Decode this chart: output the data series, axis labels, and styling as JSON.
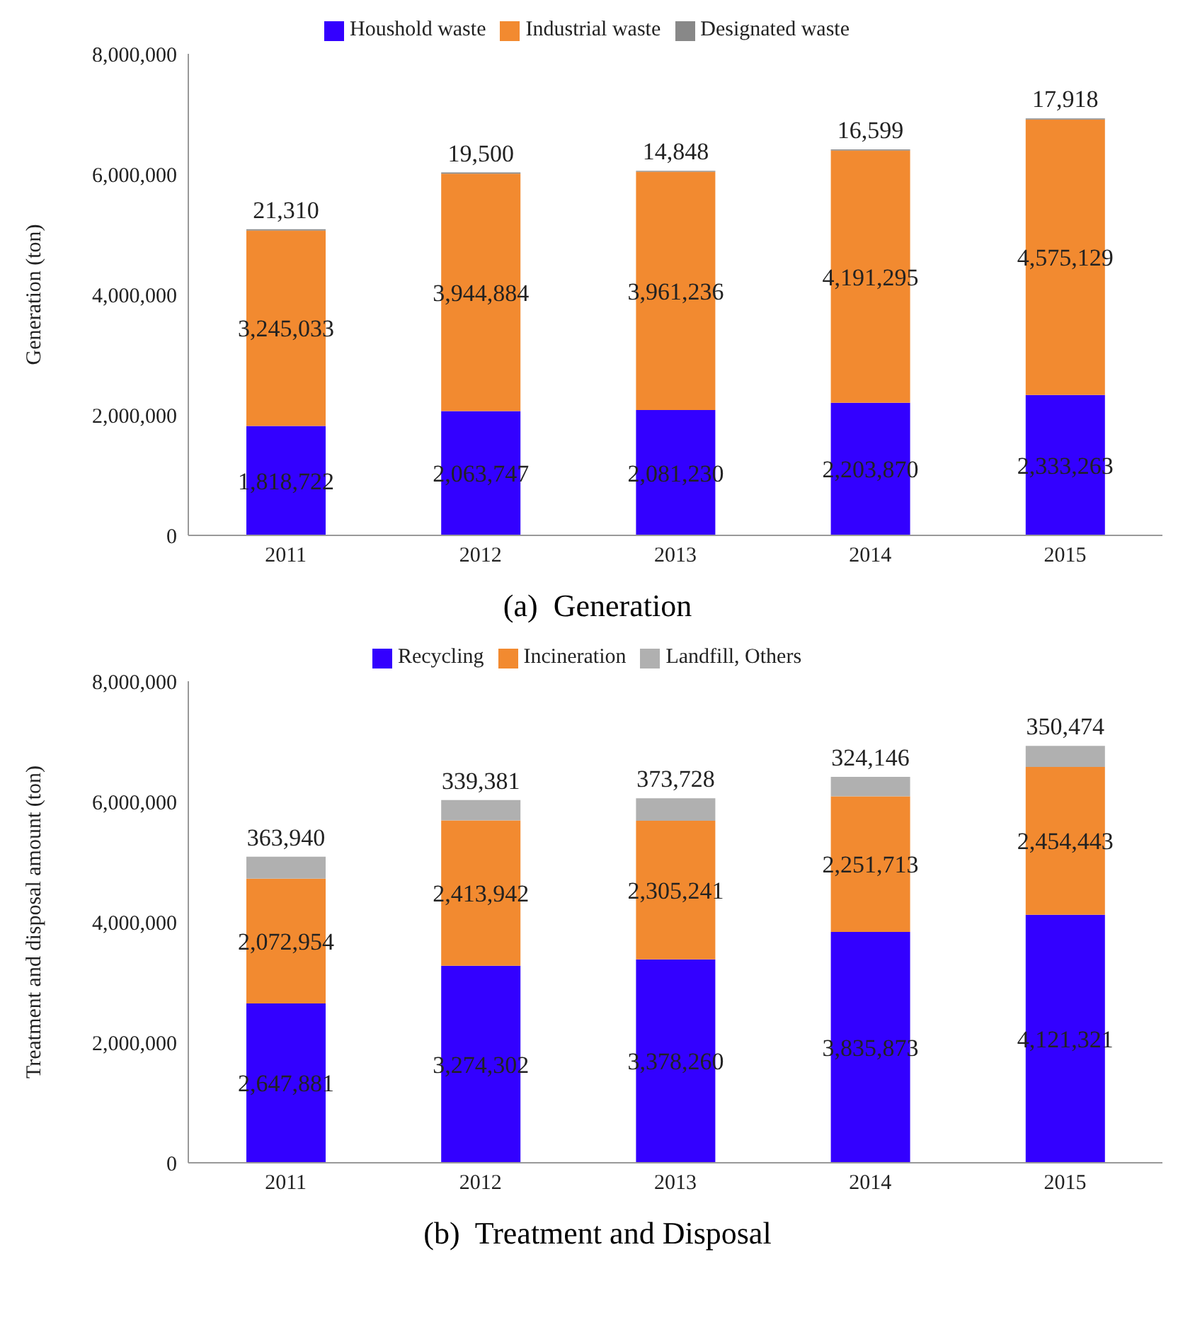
{
  "chart_data": [
    {
      "type": "bar",
      "title": "(a)  Generation",
      "ylabel": "Generation (ton)",
      "categories": [
        "2011",
        "2012",
        "2013",
        "2014",
        "2015"
      ],
      "stacked": true,
      "legend": "top",
      "grid": false,
      "ylim": [
        0,
        8000000
      ],
      "yticks": [
        {
          "value": 0,
          "label": "0"
        },
        {
          "value": 2000000,
          "label": "2,000,000"
        },
        {
          "value": 4000000,
          "label": "4,000,000"
        },
        {
          "value": 6000000,
          "label": "6,000,000"
        },
        {
          "value": 8000000,
          "label": "8,000,000"
        }
      ],
      "series": [
        {
          "name": "Houshold waste",
          "color": "#3300ff",
          "values": [
            1818722,
            2063747,
            2081230,
            2203870,
            2333263
          ],
          "value_labels": [
            "1,818,722",
            "2,063,747",
            "2,081,230",
            "2,203,870",
            "2,333,263"
          ]
        },
        {
          "name": "Industrial waste",
          "color": "#f28a30",
          "values": [
            3245033,
            3944884,
            3961236,
            4191295,
            4575129
          ],
          "value_labels": [
            "3,245,033",
            "3,944,884",
            "3,961,236",
            "4,191,295",
            "4,575,129"
          ]
        },
        {
          "name": "Designated waste",
          "color": "#888888",
          "values": [
            21310,
            19500,
            14848,
            16599,
            17918
          ],
          "value_labels": [
            "21,310",
            "19,500",
            "14,848",
            "16,599",
            "17,918"
          ]
        }
      ]
    },
    {
      "type": "bar",
      "title": "(b)  Treatment and Disposal",
      "ylabel": "Treatment and disposal amount (ton)",
      "categories": [
        "2011",
        "2012",
        "2013",
        "2014",
        "2015"
      ],
      "stacked": true,
      "legend": "top",
      "grid": false,
      "ylim": [
        0,
        8000000
      ],
      "yticks": [
        {
          "value": 0,
          "label": "0"
        },
        {
          "value": 2000000,
          "label": "2,000,000"
        },
        {
          "value": 4000000,
          "label": "4,000,000"
        },
        {
          "value": 6000000,
          "label": "6,000,000"
        },
        {
          "value": 8000000,
          "label": "8,000,000"
        }
      ],
      "series": [
        {
          "name": "Recycling",
          "color": "#3300ff",
          "values": [
            2647881,
            3274302,
            3378260,
            3835873,
            4121321
          ],
          "value_labels": [
            "2,647,881",
            "3,274,302",
            "3,378,260",
            "3,835,873",
            "4,121,321"
          ]
        },
        {
          "name": "Incineration",
          "color": "#f28a30",
          "values": [
            2072954,
            2413942,
            2305241,
            2251713,
            2454443
          ],
          "value_labels": [
            "2,072,954",
            "2,413,942",
            "2,305,241",
            "2,251,713",
            "2,454,443"
          ]
        },
        {
          "name": "Landfill, Others",
          "color": "#b0b0b0",
          "values": [
            363940,
            339381,
            373728,
            324146,
            350474
          ],
          "value_labels": [
            "363,940",
            "339,381",
            "373,728",
            "324,146",
            "350,474"
          ]
        }
      ]
    }
  ]
}
